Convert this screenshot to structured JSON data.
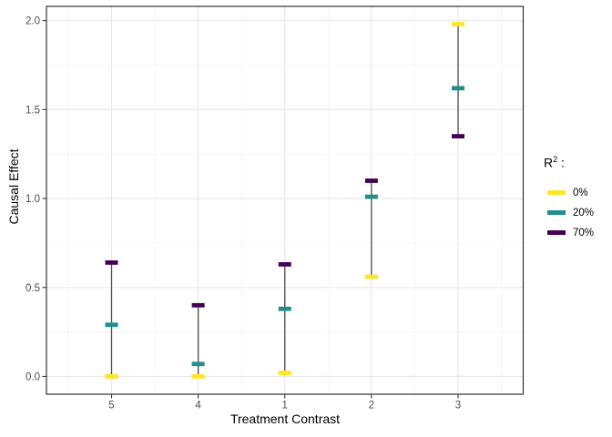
{
  "figure": {
    "y_axis_title": "Causal Effect",
    "x_axis_title": "Treatment Contrast",
    "legend": {
      "title_base": "R",
      "title_sup": "2",
      "title_suffix": " :",
      "entries": [
        {
          "label": "0%",
          "color": "#FDE725"
        },
        {
          "label": "20%",
          "color": "#21908C"
        },
        {
          "label": "70%",
          "color": "#440154"
        }
      ]
    }
  },
  "chart_data": {
    "type": "crossbar-range",
    "title": "",
    "xlabel": "Treatment Contrast",
    "ylabel": "Causal Effect",
    "categories": [
      "5",
      "4",
      "1",
      "2",
      "3"
    ],
    "series": [
      {
        "name": "0%",
        "color": "#FDE725",
        "values": [
          0.0,
          0.0,
          0.02,
          0.56,
          1.98
        ]
      },
      {
        "name": "20%",
        "color": "#21908C",
        "values": [
          0.29,
          0.07,
          0.38,
          1.01,
          1.62
        ]
      },
      {
        "name": "70%",
        "color": "#440154",
        "values": [
          0.64,
          0.4,
          0.63,
          1.1,
          1.35
        ]
      }
    ],
    "y_ticks": [
      0.0,
      0.5,
      1.0,
      1.5,
      2.0
    ],
    "y_tick_labels": [
      "0.0",
      "0.5",
      "1.0",
      "1.5",
      "2.0"
    ],
    "y_minor_ticks": [
      0.25,
      0.75,
      1.25,
      1.75
    ],
    "ylim": [
      -0.1,
      2.08
    ],
    "grid": true,
    "legend_position": "right",
    "legend_title": "R² :"
  },
  "colors": {
    "panel_bg": "#ffffff",
    "grid_major": "#e8e8e8",
    "grid_minor": "#f3f3f3",
    "panel_border": "#333333",
    "tick": "#333333",
    "tick_label": "#4d4d4d",
    "range_line": "#4a4a4a"
  }
}
